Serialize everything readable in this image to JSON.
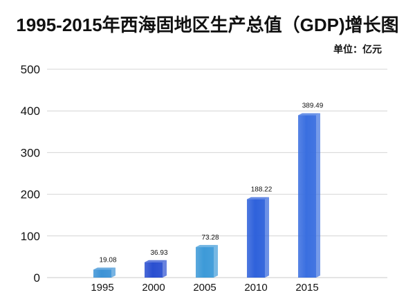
{
  "chart_data": {
    "type": "bar",
    "title": "1995-2015年西海固地区生产总值（GDP)增长图",
    "unit_label": "单位：亿元",
    "xlabel": "",
    "ylabel": "",
    "categories": [
      "1995",
      "2000",
      "2005",
      "2010",
      "2015"
    ],
    "values": [
      19.08,
      36.93,
      73.28,
      188.22,
      389.49
    ],
    "value_labels": [
      "19.08",
      "36.93",
      "73.28",
      "188.22",
      "389.49"
    ],
    "ylim": [
      0,
      500
    ],
    "yticks": [
      0,
      100,
      200,
      300,
      400,
      500
    ],
    "ytick_labels": [
      "0",
      "100",
      "200",
      "300",
      "400",
      "500"
    ],
    "grid": true,
    "bar_colors": [
      "#3d93d6",
      "#2a4fd0",
      "#3d9ad8",
      "#2f62db",
      "#3a6fe0"
    ]
  }
}
